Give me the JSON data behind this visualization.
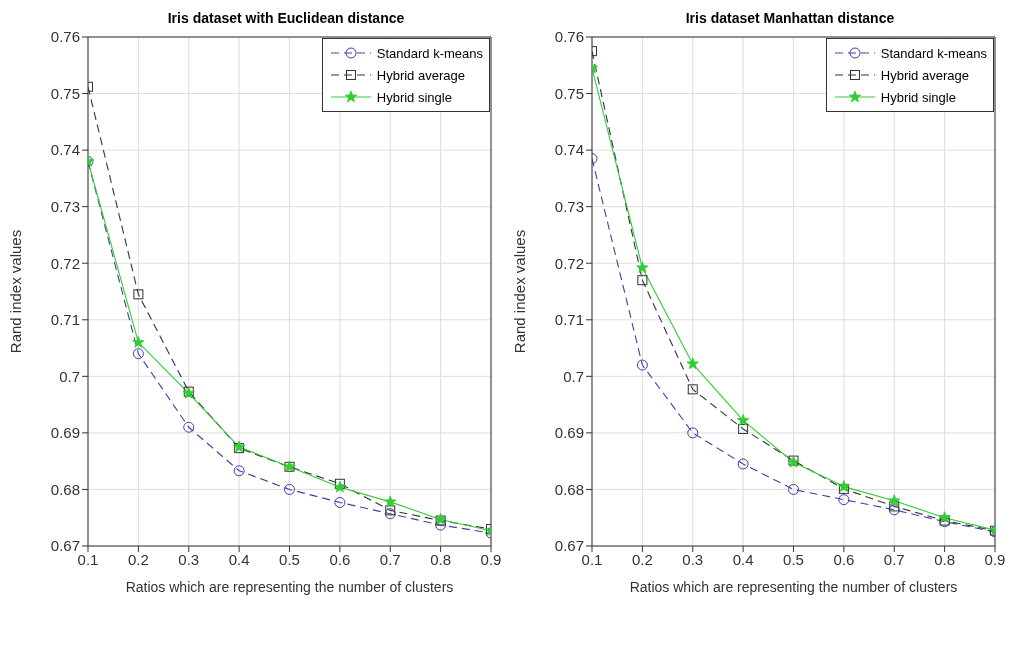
{
  "chart_data": [
    {
      "type": "line",
      "title": "Iris dataset with Euclidean distance",
      "xlabel": "Ratios which are representing the number of clusters",
      "ylabel": "Rand index values",
      "x": [
        0.1,
        0.2,
        0.3,
        0.4,
        0.5,
        0.6,
        0.7,
        0.8,
        0.9
      ],
      "xlim": [
        0.1,
        0.9
      ],
      "xticks": [
        0.1,
        0.2,
        0.3,
        0.4,
        0.5,
        0.6,
        0.7,
        0.8,
        0.9
      ],
      "ylim": [
        0.67,
        0.76
      ],
      "yticks": [
        0.67,
        0.68,
        0.69,
        0.7,
        0.71,
        0.72,
        0.73,
        0.74,
        0.75,
        0.76
      ],
      "grid": true,
      "legend": "top right",
      "series": [
        {
          "name": "Standard k-means",
          "color": "#3f3fae",
          "marker": "circle",
          "line_style": "dashed",
          "values": [
            0.738,
            0.704,
            0.691,
            0.6833,
            0.68,
            0.6777,
            0.6757,
            0.6737,
            0.6723
          ]
        },
        {
          "name": "Hybrid average",
          "color": "#333333",
          "marker": "square",
          "line_style": "dashed",
          "values": [
            0.7512,
            0.7145,
            0.6973,
            0.6873,
            0.684,
            0.681,
            0.6763,
            0.6745,
            0.673
          ]
        },
        {
          "name": "Hybrid single",
          "color": "#33cc33",
          "marker": "star",
          "line_style": "solid",
          "values": [
            0.738,
            0.706,
            0.697,
            0.6875,
            0.684,
            0.6804,
            0.6778,
            0.6747,
            0.6727
          ]
        }
      ]
    },
    {
      "type": "line",
      "title": "Iris dataset Manhattan distance",
      "xlabel": "Ratios which are representing the number of clusters",
      "ylabel": "Rand index values",
      "x": [
        0.1,
        0.2,
        0.3,
        0.4,
        0.5,
        0.6,
        0.7,
        0.8,
        0.9
      ],
      "xlim": [
        0.1,
        0.9
      ],
      "xticks": [
        0.1,
        0.2,
        0.3,
        0.4,
        0.5,
        0.6,
        0.7,
        0.8,
        0.9
      ],
      "ylim": [
        0.67,
        0.76
      ],
      "yticks": [
        0.67,
        0.68,
        0.69,
        0.7,
        0.71,
        0.72,
        0.73,
        0.74,
        0.75,
        0.76
      ],
      "grid": true,
      "legend": "top right",
      "series": [
        {
          "name": "Standard k-means",
          "color": "#3f3fae",
          "marker": "circle",
          "line_style": "dashed",
          "values": [
            0.7385,
            0.702,
            0.69,
            0.6845,
            0.68,
            0.6782,
            0.6764,
            0.6743,
            0.6725
          ]
        },
        {
          "name": "Hybrid average",
          "color": "#333333",
          "marker": "square",
          "line_style": "dashed",
          "values": [
            0.7575,
            0.717,
            0.6977,
            0.6907,
            0.6851,
            0.6801,
            0.677,
            0.6745,
            0.6727
          ]
        },
        {
          "name": "Hybrid single",
          "color": "#33cc33",
          "marker": "star",
          "line_style": "solid",
          "values": [
            0.7545,
            0.7192,
            0.7022,
            0.6922,
            0.6848,
            0.6805,
            0.678,
            0.675,
            0.6728
          ]
        }
      ]
    }
  ]
}
